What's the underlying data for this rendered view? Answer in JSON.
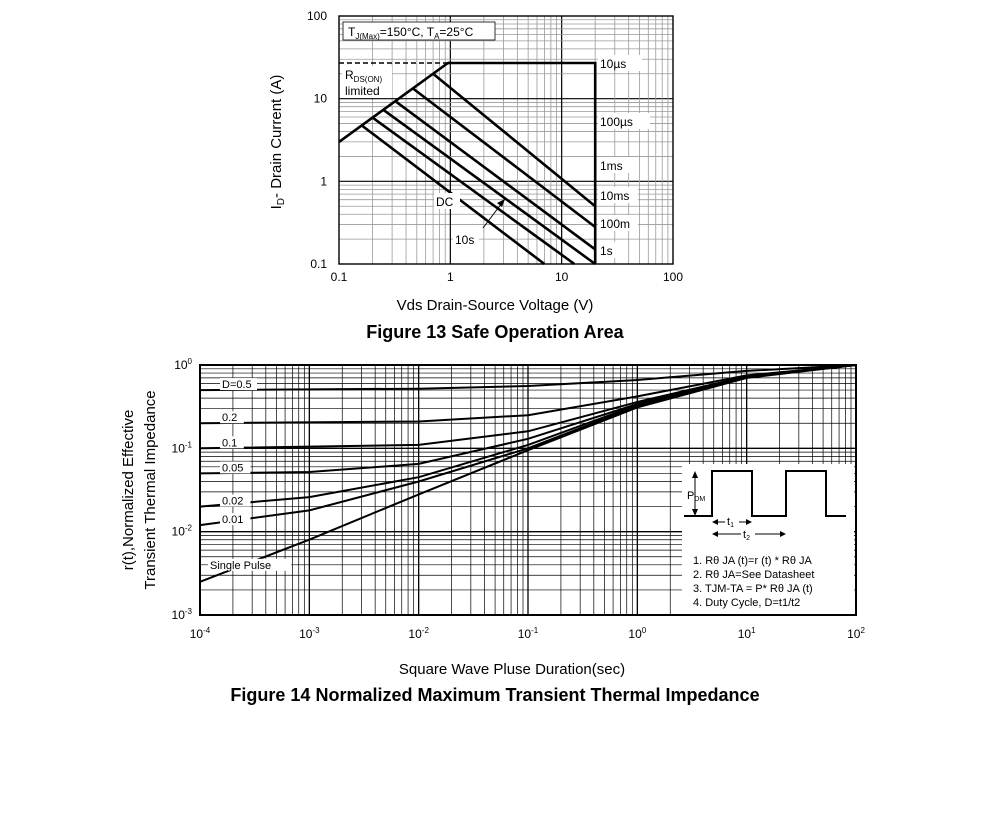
{
  "colors": {
    "ink": "#000000",
    "grid": "#9a9a9a",
    "paper": "#ffffff"
  },
  "chart_data": [
    {
      "type": "line",
      "title": "Figure 13 Safe Operation Area",
      "xlabel": "Vds Drain-Source Voltage (V)",
      "ylabel_parts": [
        "I",
        "D",
        "- Drain Current (A)"
      ],
      "xscale": "log",
      "yscale": "log",
      "xlim": [
        0.1,
        100
      ],
      "ylim": [
        0.1,
        100
      ],
      "grid": true,
      "x_ticks": [
        {
          "v": 0.1,
          "label": "0.1"
        },
        {
          "v": 1,
          "label": "1"
        },
        {
          "v": 10,
          "label": "10"
        },
        {
          "v": 100,
          "label": "100"
        }
      ],
      "y_ticks": [
        {
          "v": 0.1,
          "label": "0.1"
        },
        {
          "v": 1,
          "label": "1"
        },
        {
          "v": 10,
          "label": "10"
        },
        {
          "v": 100,
          "label": "100"
        }
      ],
      "condition": {
        "p1": "T",
        "p1sub": "J(Max)",
        "p2": "=150°C, T",
        "p2sub": "A",
        "p3": "=25°C"
      },
      "rds_label": {
        "p1": "R",
        "p1sub": "DS(ON)",
        "line2": "limited"
      },
      "rds_limit": [
        [
          0.1,
          3.0
        ],
        [
          0.95,
          27
        ],
        [
          1.0,
          27
        ]
      ],
      "rds_dashed": [
        [
          0.1,
          27
        ],
        [
          0.95,
          27
        ]
      ],
      "vmax": 20,
      "series": [
        {
          "name": "10µs",
          "values": [
            [
              0.95,
              27
            ],
            [
              4.5,
              27
            ],
            [
              20,
              27
            ],
            [
              20,
              0.1
            ]
          ]
        },
        {
          "name": "100µs",
          "values": [
            [
              0.7,
              15
            ],
            [
              20,
              0.5
            ]
          ]
        },
        {
          "name": "1ms",
          "values": [
            [
              0.46,
              12
            ],
            [
              20,
              0.28
            ]
          ]
        },
        {
          "name": "10ms",
          "values": [
            [
              0.32,
              9.2
            ],
            [
              20,
              0.15
            ]
          ]
        },
        {
          "name": "100m",
          "values": [
            [
              0.25,
              7.0
            ],
            [
              20,
              0.1
            ]
          ]
        },
        {
          "name": "1s",
          "values": [
            [
              0.2,
              5.4
            ],
            [
              13,
              0.1
            ]
          ]
        },
        {
          "name": "10s",
          "values": [
            [
              0.16,
              4.0
            ],
            [
              7,
              0.1
            ]
          ]
        }
      ],
      "labels": {
        "l10us": "10µs",
        "l100us": "100µs",
        "l1ms": "1ms",
        "l10ms": "10ms",
        "l100m": "100m",
        "l1s": "1s",
        "dc": "DC",
        "l10s": "10s"
      }
    },
    {
      "type": "line",
      "title": "Figure 14 Normalized Maximum Transient Thermal Impedance",
      "xlabel": "Square Wave Pluse Duration(sec)",
      "ylabel": [
        "r(t),Normalized Effective",
        "Transient Thermal Impedance"
      ],
      "xscale": "log",
      "yscale": "log",
      "xlim": [
        0.0001,
        100
      ],
      "ylim": [
        0.001,
        1
      ],
      "grid": true,
      "x_ticks": [
        {
          "v": 0.0001,
          "b": "10",
          "e": "-4"
        },
        {
          "v": 0.001,
          "b": "10",
          "e": "-3"
        },
        {
          "v": 0.01,
          "b": "10",
          "e": "-2"
        },
        {
          "v": 0.1,
          "b": "10",
          "e": "-1"
        },
        {
          "v": 1,
          "b": "10",
          "e": "0"
        },
        {
          "v": 10,
          "b": "10",
          "e": "1"
        },
        {
          "v": 100,
          "b": "10",
          "e": "2"
        }
      ],
      "y_ticks": [
        {
          "v": 0.001,
          "b": "10",
          "e": "-3"
        },
        {
          "v": 0.01,
          "b": "10",
          "e": "-2"
        },
        {
          "v": 0.1,
          "b": "10",
          "e": "-1"
        },
        {
          "v": 1,
          "b": "10",
          "e": "0"
        }
      ],
      "series": [
        {
          "name": "D=0.5",
          "values": [
            [
              0.0001,
              0.5
            ],
            [
              0.01,
              0.52
            ],
            [
              0.1,
              0.56
            ],
            [
              1,
              0.66
            ],
            [
              10,
              0.85
            ],
            [
              100,
              1.0
            ]
          ]
        },
        {
          "name": "0.2",
          "values": [
            [
              0.0001,
              0.2
            ],
            [
              0.01,
              0.21
            ],
            [
              0.1,
              0.25
            ],
            [
              1,
              0.42
            ],
            [
              10,
              0.75
            ],
            [
              100,
              1.0
            ]
          ]
        },
        {
          "name": "0.1",
          "values": [
            [
              0.0001,
              0.1
            ],
            [
              0.01,
              0.11
            ],
            [
              0.1,
              0.16
            ],
            [
              1,
              0.36
            ],
            [
              10,
              0.73
            ],
            [
              100,
              1.0
            ]
          ]
        },
        {
          "name": "0.05",
          "values": [
            [
              0.0001,
              0.05
            ],
            [
              0.001,
              0.052
            ],
            [
              0.01,
              0.065
            ],
            [
              0.1,
              0.13
            ],
            [
              1,
              0.34
            ],
            [
              10,
              0.72
            ],
            [
              100,
              1.0
            ]
          ]
        },
        {
          "name": "0.02",
          "values": [
            [
              0.0001,
              0.02
            ],
            [
              0.001,
              0.026
            ],
            [
              0.01,
              0.045
            ],
            [
              0.1,
              0.11
            ],
            [
              1,
              0.33
            ],
            [
              10,
              0.71
            ],
            [
              100,
              1.0
            ]
          ]
        },
        {
          "name": "0.01",
          "values": [
            [
              0.0001,
              0.012
            ],
            [
              0.001,
              0.018
            ],
            [
              0.01,
              0.04
            ],
            [
              0.1,
              0.1
            ],
            [
              1,
              0.32
            ],
            [
              10,
              0.71
            ],
            [
              100,
              1.0
            ]
          ]
        },
        {
          "name": "Single Pulse",
          "values": [
            [
              0.0001,
              0.0025
            ],
            [
              0.001,
              0.008
            ],
            [
              0.01,
              0.028
            ],
            [
              0.1,
              0.095
            ],
            [
              1,
              0.31
            ],
            [
              10,
              0.7
            ],
            [
              100,
              1.0
            ]
          ]
        }
      ],
      "inset": {
        "pdm": {
          "p1": "P",
          "p1sub": "DM"
        },
        "t1": {
          "p1": "t",
          "p1sub": "1"
        },
        "t2": {
          "p1": "t",
          "p1sub": "2"
        },
        "notes": [
          "1. Rθ JA (t)=r (t) * Rθ JA",
          "2. Rθ JA=See Datasheet",
          "3. TJM-TA = P* Rθ JA (t)",
          "4. Duty Cycle, D=t1/t2"
        ]
      }
    }
  ]
}
